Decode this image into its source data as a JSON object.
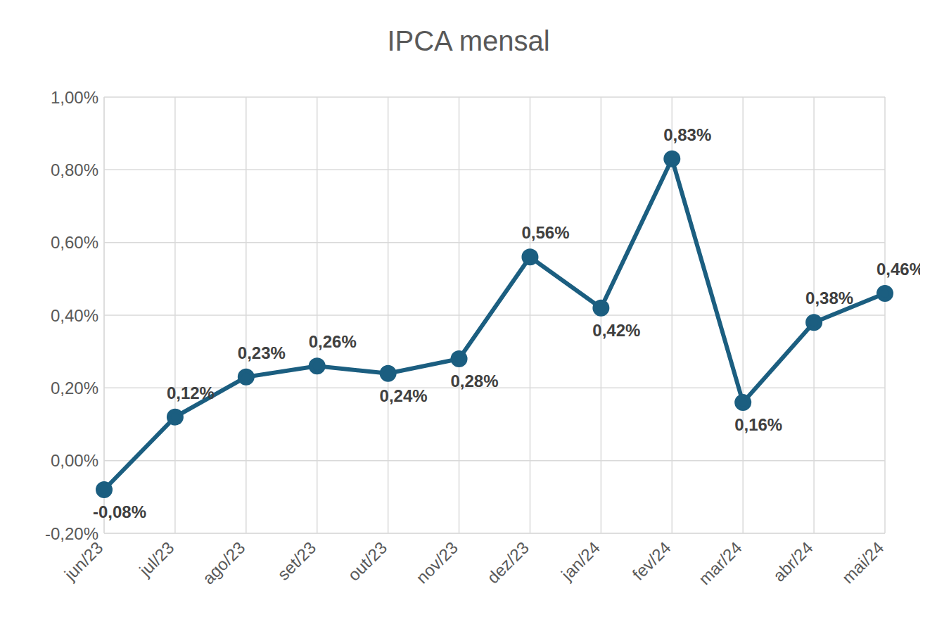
{
  "chart_data": {
    "type": "line",
    "title": "IPCA mensal",
    "categories": [
      "jun/23",
      "jul/23",
      "ago/23",
      "set/23",
      "out/23",
      "nov/23",
      "dez/23",
      "jan/24",
      "fev/24",
      "mar/24",
      "abr/24",
      "mai/24"
    ],
    "values": [
      -0.08,
      0.12,
      0.23,
      0.26,
      0.24,
      0.28,
      0.56,
      0.42,
      0.83,
      0.16,
      0.38,
      0.46
    ],
    "value_labels": [
      "-0,08%",
      "0,12%",
      "0,23%",
      "0,26%",
      "0,24%",
      "0,28%",
      "0,56%",
      "0,42%",
      "0,83%",
      "0,16%",
      "0,38%",
      "0,46%"
    ],
    "color": "#1b5e80",
    "ylim": [
      -0.2,
      1.0
    ],
    "yticks": [
      {
        "value": -0.2,
        "label": "-0,20%"
      },
      {
        "value": 0,
        "label": "0,00%"
      },
      {
        "value": 0.2,
        "label": "0,20%"
      },
      {
        "value": 0.4,
        "label": "0,40%"
      },
      {
        "value": 0.6,
        "label": "0,60%"
      },
      {
        "value": 0.8,
        "label": "0,80%"
      },
      {
        "value": 1.0,
        "label": "1,00%"
      }
    ],
    "grid": true,
    "data_labels": true,
    "marker": "circle"
  }
}
